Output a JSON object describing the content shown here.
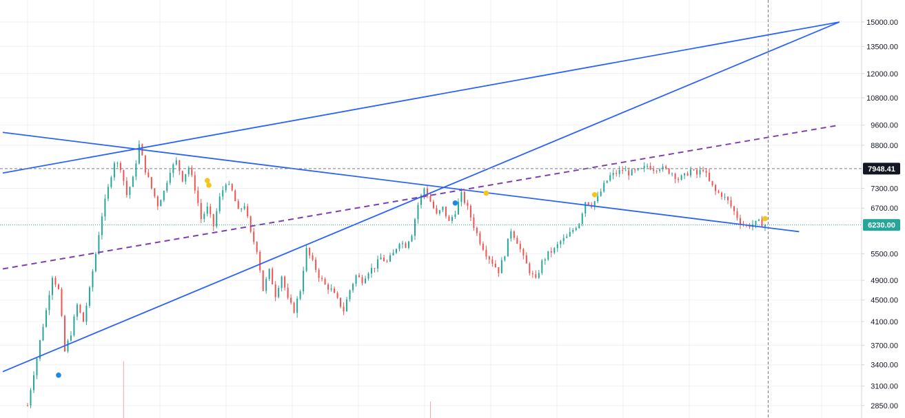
{
  "chart_data": {
    "type": "candlestick",
    "title": "",
    "xlabel": "",
    "ylabel": "",
    "y_scale": "log",
    "ylim": [
      2700,
      16500
    ],
    "y_ticks": [
      "15000.00",
      "13500.00",
      "12000.00",
      "10800.00",
      "9600.00",
      "8800.00",
      "7300.00",
      "6700.00",
      "5500.00",
      "4900.00",
      "4500.00",
      "4100.00",
      "3700.00",
      "3400.00",
      "3100.00",
      "2850.00"
    ],
    "last_price": {
      "value": 6230,
      "label": "6230.00",
      "color": "#26a69a"
    },
    "crosshair_price": {
      "value": 7948.41,
      "label": "7948.41",
      "color": "#131722"
    },
    "grid": true,
    "colors": {
      "up": "#26a69a",
      "down": "#ef5350",
      "trendline": "#2962ff",
      "channel_mid": "#7b3fb0",
      "marker_yellow": "#f5c518",
      "marker_blue": "#1e88e5"
    },
    "price_path": [
      [
        0,
        2850
      ],
      [
        3,
        3500
      ],
      [
        6,
        4300
      ],
      [
        8,
        5000
      ],
      [
        10,
        4700
      ],
      [
        12,
        3600
      ],
      [
        14,
        3900
      ],
      [
        16,
        4400
      ],
      [
        18,
        4100
      ],
      [
        20,
        4700
      ],
      [
        22,
        5500
      ],
      [
        24,
        6500
      ],
      [
        26,
        7300
      ],
      [
        28,
        8200
      ],
      [
        30,
        8000
      ],
      [
        32,
        7100
      ],
      [
        34,
        7600
      ],
      [
        36,
        8800
      ],
      [
        38,
        7900
      ],
      [
        40,
        7300
      ],
      [
        42,
        6800
      ],
      [
        44,
        7200
      ],
      [
        46,
        7900
      ],
      [
        48,
        8200
      ],
      [
        50,
        7600
      ],
      [
        52,
        8000
      ],
      [
        54,
        7300
      ],
      [
        56,
        6400
      ],
      [
        58,
        6700
      ],
      [
        60,
        6200
      ],
      [
        62,
        7000
      ],
      [
        64,
        7500
      ],
      [
        66,
        7200
      ],
      [
        68,
        6600
      ],
      [
        70,
        6800
      ],
      [
        72,
        6000
      ],
      [
        74,
        5600
      ],
      [
        76,
        4700
      ],
      [
        78,
        5100
      ],
      [
        80,
        4600
      ],
      [
        82,
        5000
      ],
      [
        84,
        4500
      ],
      [
        86,
        4300
      ],
      [
        88,
        4700
      ],
      [
        90,
        5600
      ],
      [
        92,
        5300
      ],
      [
        94,
        5000
      ],
      [
        96,
        4800
      ],
      [
        98,
        4700
      ],
      [
        100,
        4500
      ],
      [
        102,
        4300
      ],
      [
        104,
        4700
      ],
      [
        106,
        5000
      ],
      [
        108,
        4900
      ],
      [
        110,
        5100
      ],
      [
        112,
        5200
      ],
      [
        114,
        5400
      ],
      [
        116,
        5300
      ],
      [
        118,
        5500
      ],
      [
        120,
        5800
      ],
      [
        122,
        5700
      ],
      [
        124,
        6000
      ],
      [
        126,
        6800
      ],
      [
        128,
        7300
      ],
      [
        130,
        6900
      ],
      [
        132,
        6500
      ],
      [
        134,
        6700
      ],
      [
        136,
        6300
      ],
      [
        138,
        6600
      ],
      [
        140,
        7100
      ],
      [
        142,
        6700
      ],
      [
        144,
        6200
      ],
      [
        146,
        5800
      ],
      [
        148,
        5500
      ],
      [
        150,
        5300
      ],
      [
        152,
        5100
      ],
      [
        154,
        5500
      ],
      [
        156,
        6100
      ],
      [
        158,
        5800
      ],
      [
        160,
        5400
      ],
      [
        162,
        5100
      ],
      [
        164,
        4900
      ],
      [
        166,
        5300
      ],
      [
        168,
        5500
      ],
      [
        170,
        5600
      ],
      [
        172,
        5800
      ],
      [
        174,
        5900
      ],
      [
        176,
        6100
      ],
      [
        178,
        6300
      ],
      [
        180,
        6900
      ],
      [
        182,
        6800
      ],
      [
        184,
        7000
      ],
      [
        186,
        7400
      ],
      [
        188,
        7700
      ],
      [
        190,
        7800
      ],
      [
        192,
        7900
      ],
      [
        194,
        7800
      ],
      [
        196,
        7850
      ],
      [
        198,
        7900
      ],
      [
        200,
        8050
      ],
      [
        202,
        7950
      ],
      [
        204,
        8000
      ],
      [
        206,
        7900
      ],
      [
        208,
        7800
      ],
      [
        210,
        7600
      ],
      [
        212,
        7700
      ],
      [
        214,
        7900
      ],
      [
        216,
        7750
      ],
      [
        218,
        7950
      ],
      [
        220,
        7500
      ],
      [
        222,
        7200
      ],
      [
        224,
        7100
      ],
      [
        226,
        6900
      ],
      [
        228,
        6600
      ],
      [
        230,
        6300
      ],
      [
        232,
        6200
      ],
      [
        234,
        6250
      ],
      [
        236,
        6300
      ],
      [
        238,
        6230
      ]
    ],
    "x_count": 239,
    "trendlines": [
      {
        "name": "",
        "style": "solid",
        "color": "#2962ff",
        "points": [
          [
            -8,
            3300
          ],
          [
            262,
            15000
          ]
        ]
      },
      {
        "name": "",
        "style": "solid",
        "color": "#2962ff",
        "points": [
          [
            -8,
            7800
          ],
          [
            262,
            15000
          ]
        ]
      },
      {
        "name": "",
        "style": "solid",
        "color": "#2962ff",
        "points": [
          [
            -8,
            9300
          ],
          [
            249,
            6050
          ]
        ]
      },
      {
        "name": "",
        "style": "dashed",
        "color": "#7b3fb0",
        "points": [
          [
            -8,
            5150
          ],
          [
            262,
            9600
          ]
        ]
      }
    ],
    "markers": [
      {
        "x": 10,
        "y": 3250,
        "color": "#1e88e5"
      },
      {
        "x": 58,
        "y": 7550,
        "color": "#f5c518"
      },
      {
        "x": 58.5,
        "y": 7400,
        "color": "#f5c518"
      },
      {
        "x": 138,
        "y": 6850,
        "color": "#1e88e5"
      },
      {
        "x": 148,
        "y": 7150,
        "color": "#f5c518"
      },
      {
        "x": 183,
        "y": 7100,
        "color": "#f5c518"
      },
      {
        "x": 238,
        "y": 6400,
        "color": "#f5c518"
      }
    ],
    "volume_spikes": [
      {
        "x": 31,
        "height": 3450
      },
      {
        "x": 130,
        "height": 2900
      }
    ],
    "crosshair_x": 239
  }
}
